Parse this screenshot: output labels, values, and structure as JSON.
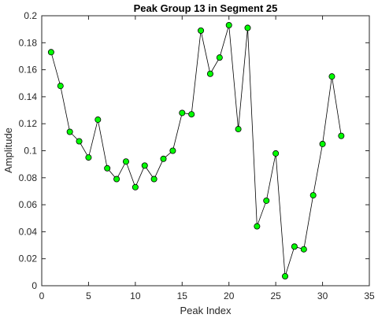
{
  "chart_data": {
    "type": "line",
    "title": "Peak Group 13 in Segment 25",
    "xlabel": "Peak Index",
    "ylabel": "Amplitude",
    "xlim": [
      0,
      35
    ],
    "ylim": [
      0,
      0.2
    ],
    "xticks": [
      "0",
      "5",
      "10",
      "15",
      "20",
      "25",
      "30",
      "35"
    ],
    "yticks": [
      "0",
      "0.02",
      "0.04",
      "0.06",
      "0.08",
      "0.1",
      "0.12",
      "0.14",
      "0.16",
      "0.18",
      "0.2"
    ],
    "grid": false,
    "line_color": "#000000",
    "marker_color": "#00ff00",
    "marker_edge_color": "#000000",
    "x": [
      1,
      2,
      3,
      4,
      5,
      6,
      7,
      8,
      9,
      10,
      11,
      12,
      13,
      14,
      15,
      16,
      17,
      18,
      19,
      20,
      21,
      22,
      23,
      24,
      25,
      26,
      27,
      28,
      29,
      30,
      31,
      32
    ],
    "values": [
      0.173,
      0.148,
      0.114,
      0.107,
      0.095,
      0.123,
      0.087,
      0.079,
      0.092,
      0.073,
      0.089,
      0.079,
      0.094,
      0.1,
      0.128,
      0.127,
      0.189,
      0.157,
      0.169,
      0.193,
      0.116,
      0.191,
      0.044,
      0.063,
      0.098,
      0.007,
      0.029,
      0.027,
      0.067,
      0.105,
      0.155,
      0.111
    ]
  }
}
